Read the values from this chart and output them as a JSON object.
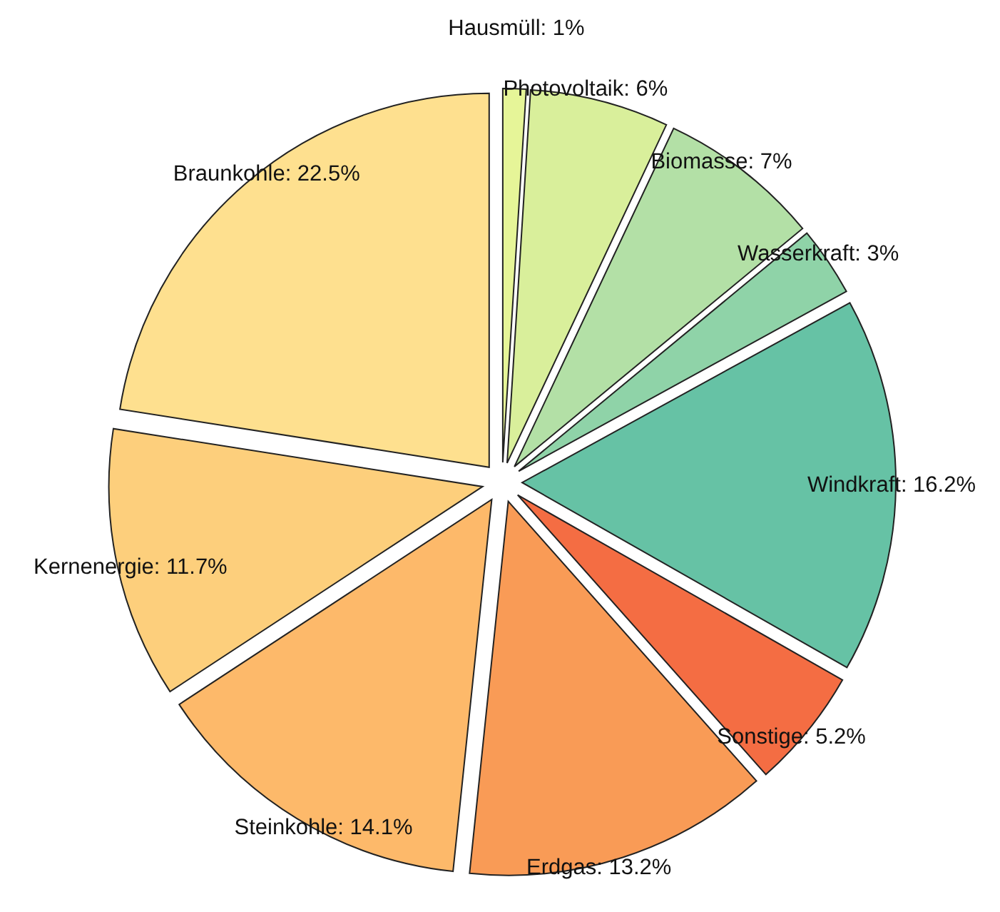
{
  "chart_data": {
    "type": "pie",
    "categories": [
      "Hausmüll",
      "Photovoltaik",
      "Biomasse",
      "Wasserkraft",
      "Windkraft",
      "Sonstige",
      "Erdgas",
      "Steinkohle",
      "Kernenergie",
      "Braunkohle"
    ],
    "values": [
      1,
      6,
      7,
      3,
      16.2,
      5.2,
      13.2,
      14.1,
      11.7,
      22.5
    ],
    "value_labels": [
      "1%",
      "6%",
      "7%",
      "3%",
      "16.2%",
      "5.2%",
      "13.2%",
      "14.1%",
      "11.7%",
      "22.5%"
    ],
    "colors": [
      "#e6f598",
      "#d9ef9b",
      "#b3e0a6",
      "#8fd3a8",
      "#66c2a5",
      "#f46d43",
      "#f99b56",
      "#fdb96a",
      "#fdcf7c",
      "#fee08f"
    ]
  }
}
